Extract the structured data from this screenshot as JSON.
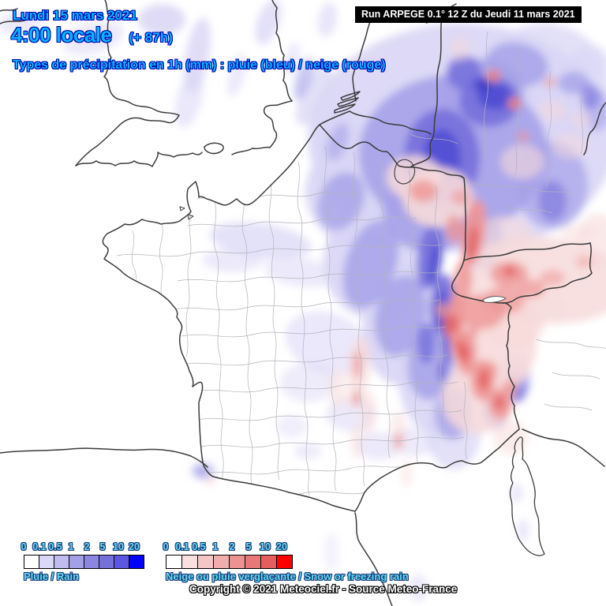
{
  "header": {
    "date": "Lundi 15 mars 2021",
    "time": "4:00 locale",
    "run_offset": "(+ 87h)",
    "subtitle": "Types de précipitation en 1h (mm) : pluie (bleu) / neige (rouge)"
  },
  "run_bar": {
    "text": "Run ARPEGE 0.1° 12 Z du Jeudi 11 mars 2021"
  },
  "legend": {
    "rain": {
      "label": "Pluie / Rain",
      "ticks": [
        "0",
        "0.1",
        "0.5",
        "1",
        "2",
        "5",
        "10",
        "20"
      ],
      "colors": [
        "#ffffff",
        "#dbd7f6",
        "#c0bcef",
        "#a39fe9",
        "#8a86e1",
        "#7571db",
        "#5b57e0",
        "#0000ff"
      ]
    },
    "snow": {
      "label": "Neige ou pluie verglaçante / Snow or freezing rain",
      "ticks": [
        "0",
        "0.1",
        "0.5",
        "1",
        "2",
        "5",
        "10",
        "20"
      ],
      "colors": [
        "#ffffff",
        "#f9dfdf",
        "#f5c6c6",
        "#f1acac",
        "#ec9292",
        "#e87878",
        "#e45e5e",
        "#ff0000"
      ]
    }
  },
  "footer": {
    "copyright": "Copyright © 2021 Meteociel.fr - Source Meteo-France"
  },
  "colors": {
    "header_text": "#00b6ff",
    "header_outline": "#0000ae",
    "legend_text": "#64dcec",
    "legend_outline": "#16387c",
    "run_bar_bg": "#000000",
    "run_bar_text": "#ffffff",
    "coast_line": "#3c3c3c",
    "department_line": "#b3b3bc"
  }
}
